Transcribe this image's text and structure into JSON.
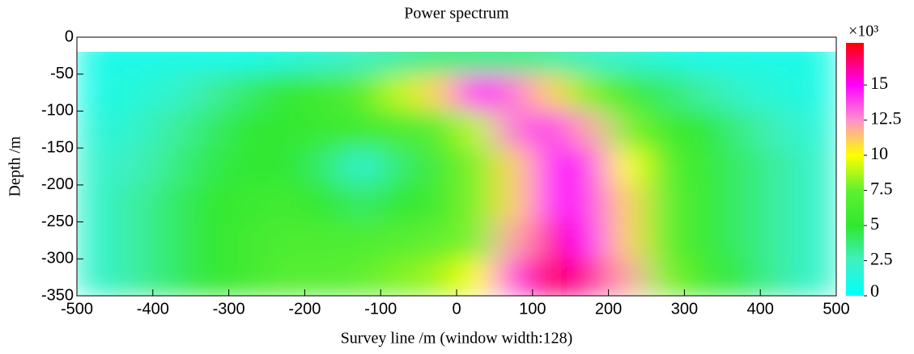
{
  "chart_data": {
    "type": "heatmap",
    "title": "Power spectrum",
    "x_label": "Survey line /m (window width:128)",
    "y_label": "Depth /m",
    "colorbar_label": "×10³",
    "x": [
      -475,
      -425,
      -375,
      -325,
      -275,
      -225,
      -175,
      -125,
      -75,
      -25,
      25,
      75,
      125,
      175,
      225,
      275,
      325,
      375,
      425,
      475
    ],
    "y": [
      -25,
      -75,
      -125,
      -175,
      -225,
      -275,
      -325
    ],
    "z": [
      [
        1,
        1,
        1,
        1,
        1,
        1.5,
        2,
        2.5,
        3,
        3.5,
        3.5,
        3.5,
        3,
        2.5,
        2,
        1.5,
        1,
        1,
        1,
        1
      ],
      [
        1,
        1.5,
        2,
        3,
        4,
        5,
        6,
        7,
        9,
        11,
        15,
        13,
        11,
        8,
        6,
        4,
        3,
        2,
        1.5,
        1
      ],
      [
        1.5,
        2,
        3,
        4,
        5,
        5,
        5.5,
        6,
        6.5,
        7,
        9,
        13,
        14,
        12,
        8,
        6,
        5,
        3.5,
        2.5,
        1.5
      ],
      [
        2,
        2.5,
        3.5,
        4.5,
        5,
        5,
        4,
        2,
        4,
        6,
        8,
        11,
        15,
        14,
        10,
        7,
        5.5,
        4,
        3,
        2
      ],
      [
        2,
        3,
        4,
        5,
        5.5,
        6,
        5,
        4,
        5,
        6,
        8,
        11,
        15,
        14,
        11,
        7.5,
        5.5,
        4,
        3,
        2
      ],
      [
        2,
        3,
        4,
        5,
        6,
        6.5,
        6.5,
        6.5,
        7,
        7.5,
        8,
        12,
        16,
        15,
        11,
        7.5,
        5.5,
        4,
        3,
        2
      ],
      [
        2,
        3,
        4,
        5,
        6,
        7,
        7,
        7.5,
        8,
        8.5,
        10,
        14,
        17,
        16,
        12,
        8,
        6,
        4.5,
        3,
        2
      ]
    ],
    "colormap": [
      {
        "value": 0,
        "color": "#00ffff"
      },
      {
        "value": 2.5,
        "color": "#40f0c0"
      },
      {
        "value": 5,
        "color": "#30e830"
      },
      {
        "value": 7.5,
        "color": "#60f030"
      },
      {
        "value": 10,
        "color": "#ffff00"
      },
      {
        "value": 12.5,
        "color": "#ff90d0"
      },
      {
        "value": 15,
        "color": "#ff00ff"
      },
      {
        "value": 18,
        "color": "#ff0000"
      }
    ],
    "xlim": [
      -500,
      500
    ],
    "ylim": [
      -350,
      0
    ],
    "clim": [
      0,
      18
    ],
    "xticks": [
      -500,
      -400,
      -300,
      -200,
      -100,
      0,
      100,
      200,
      300,
      400,
      500
    ],
    "yticks": [
      -350,
      -300,
      -250,
      -200,
      -150,
      -100,
      -50,
      0
    ],
    "cticks": [
      0,
      2.5,
      5,
      7.5,
      10,
      12.5,
      15
    ]
  }
}
